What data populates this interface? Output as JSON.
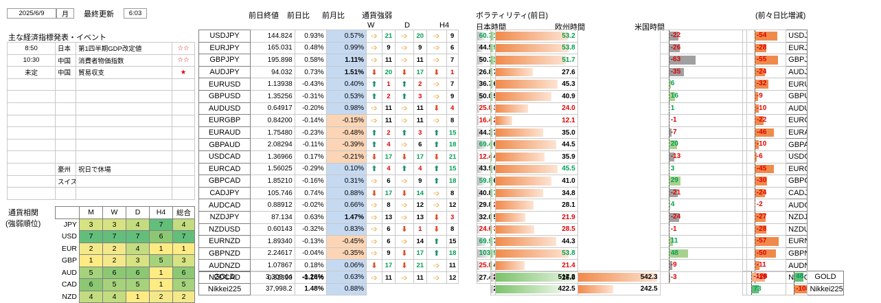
{
  "header": {
    "date": "2025/6/9",
    "weekday": "月",
    "updated_label": "最終更新",
    "updated_time": "6:03"
  },
  "events": {
    "title": "主な経済指標発表・イベント",
    "rows": [
      {
        "time": "8:50",
        "country": "日本",
        "name": "第1四半期GDP改定値",
        "stars": "☆☆",
        "star_color": "#e00000"
      },
      {
        "time": "10:30",
        "country": "中国",
        "name": "消費者物価指数",
        "stars": "☆☆",
        "star_color": "#e00000"
      },
      {
        "time": "未定",
        "country": "中国",
        "name": "貿易収支",
        "stars": "★",
        "star_color": "#e00000"
      },
      {
        "time": "",
        "country": "",
        "name": "",
        "stars": ""
      },
      {
        "time": "",
        "country": "",
        "name": "",
        "stars": ""
      },
      {
        "time": "",
        "country": "",
        "name": "",
        "stars": ""
      },
      {
        "time": "",
        "country": "",
        "name": "",
        "stars": ""
      },
      {
        "time": "",
        "country": "",
        "name": "",
        "stars": ""
      },
      {
        "time": "",
        "country": "",
        "name": "",
        "stars": ""
      },
      {
        "time": "",
        "country": "",
        "name": "",
        "stars": ""
      },
      {
        "time": "",
        "country": "豪州",
        "name": "祝日で休場",
        "stars": ""
      },
      {
        "time": "",
        "country": "スイス",
        "name": "",
        "stars": ""
      },
      {
        "time": "",
        "country": "",
        "name": "",
        "stars": ""
      }
    ]
  },
  "correlation": {
    "title": "通貨相関",
    "subtitle": "(強弱順位)",
    "columns": [
      "M",
      "W",
      "D",
      "H4",
      "総合"
    ],
    "rows": [
      {
        "ccy": "JPY",
        "vals": [
          3,
          3,
          4,
          7,
          4
        ]
      },
      {
        "ccy": "USD",
        "vals": [
          7,
          7,
          7,
          6,
          7
        ]
      },
      {
        "ccy": "EUR",
        "vals": [
          2,
          2,
          4,
          1,
          1
        ]
      },
      {
        "ccy": "GBP",
        "vals": [
          1,
          2,
          3,
          5,
          3
        ]
      },
      {
        "ccy": "AUD",
        "vals": [
          5,
          6,
          6,
          1,
          6
        ]
      },
      {
        "ccy": "CAD",
        "vals": [
          6,
          5,
          5,
          1,
          5
        ]
      },
      {
        "ccy": "NZD",
        "vals": [
          4,
          4,
          1,
          2,
          2
        ]
      }
    ],
    "colors": {
      "1": "#ffeb84",
      "2": "#f4e98a",
      "3": "#d7e382",
      "4": "#c3dc80",
      "5": "#a6d27c",
      "6": "#8cc874",
      "7": "#63be7b"
    }
  },
  "headers": {
    "prev_close": "前日終値",
    "day_chg": "前日比",
    "month_chg": "前月比",
    "strength": "通貨強弱",
    "W": "W",
    "D": "D",
    "H4": "H4",
    "volatility": "ボラティリティ(前日)",
    "japan": "日本時間",
    "europe": "欧州時間",
    "us": "米国時間",
    "vs_prev": "(前々日比増減)"
  },
  "rows": [
    {
      "pair": "USDJPY",
      "close": "144.824",
      "day": "0.93%",
      "mon": "0.57%",
      "wA": "r",
      "w": "21",
      "wc": "g",
      "dA": "r",
      "d": "20",
      "dc": "g",
      "hA": "r",
      "h": "9",
      "hc": "k",
      "jp": 60.7,
      "jpc": "g",
      "eu": 128.4,
      "euc": "g",
      "us": 53.2,
      "usc": "g",
      "cj": -22,
      "ce": 8,
      "cu": -54
    },
    {
      "pair": "EURJPY",
      "close": "165.031",
      "day": "0.48%",
      "mon": "0.99%",
      "wA": "r",
      "w": "9",
      "wc": "k",
      "dA": "r",
      "d": "9",
      "dc": "k",
      "hA": "r",
      "h": "6",
      "hc": "k",
      "jp": 44.5,
      "jpc": "k",
      "eu": 94.8,
      "euc": "g",
      "us": 53.8,
      "usc": "g",
      "cj": -26,
      "ce": -38,
      "cu": -28
    },
    {
      "pair": "GBPJPY",
      "close": "195.898",
      "day": "0.58%",
      "mon": "1.11%",
      "monB": true,
      "wA": "r",
      "w": "11",
      "wc": "k",
      "dA": "r",
      "d": "11",
      "dc": "k",
      "hA": "r",
      "h": "7",
      "hc": "k",
      "jp": 50.7,
      "jpc": "k",
      "eu": 139.3,
      "euc": "g",
      "us": 51.7,
      "usc": "g",
      "cj": -63,
      "ce": -1,
      "cu": -55
    },
    {
      "pair": "AUDJPY",
      "close": "94.032",
      "day": "0.73%",
      "mon": "1.51%",
      "monB": true,
      "wA": "d",
      "w": "20",
      "wc": "g",
      "dA": "d",
      "d": "17",
      "dc": "g",
      "hA": "d",
      "h": "1",
      "hc": "r",
      "jp": 26.8,
      "jpc": "k",
      "eu": 70.5,
      "euc": "k",
      "us": 27.6,
      "usc": "k",
      "cj": -35,
      "ce": -1,
      "cu": -24
    },
    {
      "pair": "EURUSD",
      "close": "1.13938",
      "day": "-0.43%",
      "mon": "0.40%",
      "wA": "u",
      "w": "1",
      "wc": "r",
      "dA": "u",
      "d": "2",
      "dc": "r",
      "hA": "r",
      "h": "7",
      "hc": "k",
      "jp": 36.7,
      "jpc": "k",
      "eu": 65.1,
      "euc": "k",
      "us": 45.3,
      "usc": "k",
      "cj": 6,
      "ce": -23,
      "cu": -32
    },
    {
      "pair": "GBPUSD",
      "close": "1.35256",
      "day": "-0.31%",
      "mon": "0.53%",
      "wA": "u",
      "w": "2",
      "wc": "r",
      "dA": "u",
      "d": "3",
      "dc": "r",
      "hA": "r",
      "h": "9",
      "hc": "k",
      "jp": 50.0,
      "jpc": "k",
      "eu": 57.2,
      "euc": "k",
      "us": 40.9,
      "usc": "k",
      "cj": 16,
      "ce": -15,
      "cu": -9
    },
    {
      "pair": "AUDUSD",
      "close": "0.64917",
      "day": "-0.20%",
      "mon": "0.98%",
      "wA": "r",
      "w": "11",
      "wc": "k",
      "dA": "r",
      "d": "11",
      "dc": "k",
      "hA": "d",
      "h": "4",
      "hc": "r",
      "jp": 25.0,
      "jpc": "r",
      "eu": 30.6,
      "euc": "r",
      "us": 24.0,
      "usc": "r",
      "cj": 1,
      "ce": -15,
      "cu": -10
    },
    {
      "pair": "EURGBP",
      "close": "0.84200",
      "day": "-0.14%",
      "mon": "-0.15%",
      "wA": "r",
      "w": "11",
      "wc": "k",
      "dA": "r",
      "d": "11",
      "dc": "k",
      "hA": "r",
      "h": "8",
      "hc": "k",
      "jp": 16.4,
      "jpc": "r",
      "eu": 27.5,
      "euc": "r",
      "us": 12.1,
      "usc": "r",
      "cj": -1,
      "ce": -9,
      "cu": -22
    },
    {
      "pair": "EURAUD",
      "close": "1.75480",
      "day": "-0.23%",
      "mon": "-0.48%",
      "wA": "u",
      "w": "2",
      "wc": "r",
      "dA": "u",
      "d": "3",
      "dc": "r",
      "hA": "u",
      "h": "15",
      "hc": "g",
      "jp": 44.3,
      "jpc": "k",
      "eu": 70.5,
      "euc": "k",
      "us": 35.0,
      "usc": "k",
      "cj": -7,
      "ce": -1,
      "cu": -46
    },
    {
      "pair": "GBPAUD",
      "close": "2.08294",
      "day": "-0.11%",
      "mon": "-0.39%",
      "wA": "u",
      "w": "4",
      "wc": "r",
      "dA": "r",
      "d": "6",
      "dc": "k",
      "hA": "u",
      "h": "18",
      "hc": "g",
      "jp": 69.4,
      "jpc": "g",
      "eu": 65.0,
      "euc": "k",
      "us": 44.5,
      "usc": "k",
      "cj": 20,
      "ce": 0,
      "cu": -10
    },
    {
      "pair": "USDCAD",
      "close": "1.36966",
      "day": "0.17%",
      "mon": "-0.21%",
      "wA": "d",
      "w": "17",
      "wc": "g",
      "dA": "d",
      "d": "17",
      "dc": "g",
      "hA": "d",
      "h": "21",
      "hc": "g",
      "jp": 12.4,
      "jpc": "r",
      "eu": 43.9,
      "euc": "k",
      "us": 35.9,
      "usc": "k",
      "cj": -13,
      "ce": 5,
      "cu": -6
    },
    {
      "pair": "EURCAD",
      "close": "1.56025",
      "day": "-0.29%",
      "mon": "0.10%",
      "wA": "u",
      "w": "4",
      "wc": "r",
      "dA": "u",
      "d": "4",
      "dc": "r",
      "hA": "u",
      "h": "15",
      "hc": "g",
      "jp": 43.9,
      "jpc": "k",
      "eu": 63.7,
      "euc": "k",
      "us": 45.5,
      "usc": "g",
      "cj": 3,
      "ce": -30,
      "cu": -45
    },
    {
      "pair": "GBPCAD",
      "close": "1.85210",
      "day": "-0.16%",
      "mon": "0.31%",
      "wA": "r",
      "w": "6",
      "wc": "k",
      "dA": "r",
      "d": "9",
      "dc": "k",
      "hA": "u",
      "h": "18",
      "hc": "g",
      "jp": 59.8,
      "jpc": "g",
      "eu": 62.5,
      "euc": "k",
      "us": 41.0,
      "usc": "k",
      "cj": 29,
      "ce": 0,
      "cu": -30
    },
    {
      "pair": "CADJPY",
      "close": "105.746",
      "day": "0.74%",
      "mon": "0.88%",
      "wA": "d",
      "w": "17",
      "wc": "g",
      "dA": "d",
      "d": "14",
      "dc": "g",
      "hA": "r",
      "h": "8",
      "hc": "k",
      "jp": 40.8,
      "jpc": "k",
      "eu": 77.7,
      "euc": "g",
      "us": 34.8,
      "usc": "k",
      "cj": -21,
      "ce": 3,
      "cu": -24
    },
    {
      "pair": "AUDCAD",
      "close": "0.88912",
      "day": "-0.02%",
      "mon": "0.66%",
      "wA": "r",
      "w": "8",
      "wc": "k",
      "dA": "r",
      "d": "12",
      "dc": "k",
      "hA": "r",
      "h": "12",
      "hc": "k",
      "jp": 29.8,
      "jpc": "k",
      "eu": 20.1,
      "euc": "r",
      "us": 28.1,
      "usc": "k",
      "cj": 4,
      "ce": -23,
      "cu": -2
    },
    {
      "pair": "NZDJPY",
      "close": "87.134",
      "day": "0.63%",
      "mon": "1.47%",
      "monB": true,
      "wA": "r",
      "w": "13",
      "wc": "k",
      "dA": "r",
      "d": "13",
      "dc": "k",
      "hA": "d",
      "h": "3",
      "hc": "r",
      "jp": 32.0,
      "jpc": "k",
      "eu": 50.5,
      "euc": "k",
      "us": 21.9,
      "usc": "r",
      "cj": -24,
      "ce": -11,
      "cu": -27
    },
    {
      "pair": "NZDUSD",
      "close": "0.60143",
      "day": "-0.32%",
      "mon": "0.83%",
      "wA": "r",
      "w": "6",
      "wc": "k",
      "dA": "d",
      "d": "1",
      "dc": "r",
      "hA": "d",
      "h": "8",
      "hc": "k",
      "jp": 24.6,
      "jpc": "r",
      "eu": 39.2,
      "euc": "r",
      "us": 28.5,
      "usc": "r",
      "cj": -1,
      "ce": -11,
      "cu": -28
    },
    {
      "pair": "EURNZD",
      "close": "1.89340",
      "day": "-0.13%",
      "mon": "-0.45%",
      "wA": "r",
      "w": "6",
      "wc": "k",
      "dA": "r",
      "d": "14",
      "dc": "k",
      "hA": "u",
      "h": "15",
      "hc": "k",
      "jp": 69.9,
      "jpc": "g",
      "eu": 70.3,
      "euc": "k",
      "us": 44.3,
      "usc": "k",
      "cj": 11,
      "ce": -1,
      "cu": -57
    },
    {
      "pair": "GBPNZD",
      "close": "2.24617",
      "day": "-0.04%",
      "mon": "-0.35%",
      "wA": "r",
      "w": "9",
      "wc": "k",
      "dA": "d",
      "d": "17",
      "dc": "g",
      "hA": "u",
      "h": "18",
      "hc": "g",
      "jp": 103.0,
      "jpc": "g",
      "eu": 95.5,
      "euc": "g",
      "us": 53.8,
      "usc": "g",
      "cj": 48,
      "ce": -1,
      "cu": -50
    },
    {
      "pair": "AUDNZD",
      "close": "1.07867",
      "day": "0.18%",
      "mon": "0.06%",
      "wA": "d",
      "w": "17",
      "wc": "g",
      "dA": "d",
      "d": "21",
      "dc": "g",
      "hA": "r",
      "h": "11",
      "hc": "k",
      "jp": 25.0,
      "jpc": "r",
      "eu": 40.3,
      "euc": "k",
      "us": 21.4,
      "usc": "r",
      "cj": -9,
      "ce": 1,
      "cu": -11
    },
    {
      "pair": "NZDCAD",
      "close": "0.82390",
      "day": "-0.14%",
      "mon": "0.58%",
      "wA": "r",
      "w": "11",
      "wc": "k",
      "dA": "r",
      "d": "11",
      "dc": "k",
      "hA": "r",
      "h": "12",
      "hc": "k",
      "jp": 27.4,
      "jpc": "k",
      "eu": 37.4,
      "euc": "r",
      "us": 26.0,
      "usc": "k",
      "cj": -3,
      "ce": -1,
      "cu": -19
    }
  ],
  "extra": [
    {
      "pair": "GOLD",
      "close": "3,309.64",
      "day": "-1.26%",
      "dayB": true,
      "mon": "0.63%",
      "jp": 230.2,
      "eu": 517.2,
      "us": 542.3,
      "cj": -4,
      "ce": -128,
      "cu": 48
    },
    {
      "pair": "Nikkei225",
      "close": "37,998.2",
      "day": "1.48%",
      "dayB": true,
      "mon": "0.88%",
      "jp": 217.5,
      "eu": 422.5,
      "us": 242.5,
      "cj": -3,
      "ce": 73,
      "cu": -108
    }
  ]
}
